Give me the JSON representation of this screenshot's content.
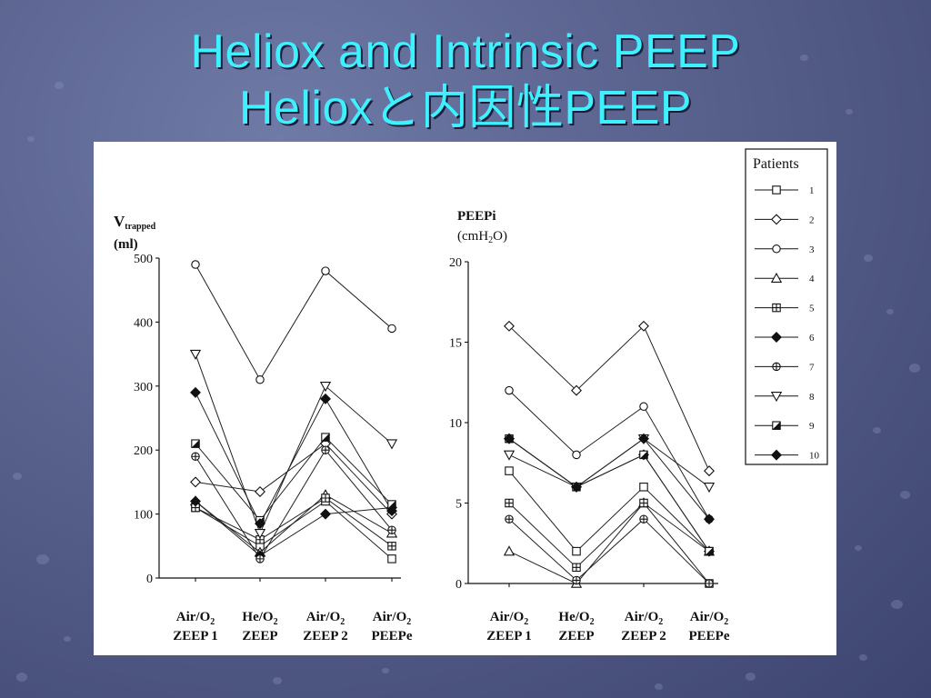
{
  "slide": {
    "title_line1": "Heliox and Intrinsic PEEP",
    "title_line2": "Helioxと内因性PEEP"
  },
  "legend": {
    "title": "Patients",
    "items": [
      "1",
      "2",
      "3",
      "4",
      "5",
      "6",
      "7",
      "8",
      "9",
      "10"
    ]
  },
  "chart_data": [
    {
      "type": "line",
      "ylabel_main": "V",
      "ylabel_sub": "trapped",
      "ylabel_unit": "(ml)",
      "ylim": [
        0,
        500
      ],
      "yticks": [
        "0",
        "100",
        "200",
        "300",
        "400",
        "500"
      ],
      "categories": [
        {
          "line1": "Air/O",
          "sub": "2",
          "line2": "ZEEP 1"
        },
        {
          "line1": "He/O",
          "sub": "2",
          "line2": "ZEEP"
        },
        {
          "line1": "Air/O",
          "sub": "2",
          "line2": "ZEEP 2"
        },
        {
          "line1": "Air/O",
          "sub": "2",
          "line2": "PEEPe"
        }
      ],
      "series": [
        {
          "name": "1",
          "marker": "square",
          "values": [
            110,
            50,
            120,
            30
          ]
        },
        {
          "name": "2",
          "marker": "diamond",
          "values": [
            150,
            135,
            210,
            100
          ]
        },
        {
          "name": "3",
          "marker": "circle",
          "values": [
            490,
            310,
            480,
            390
          ]
        },
        {
          "name": "4",
          "marker": "triangle-up",
          "values": [
            120,
            40,
            130,
            70
          ]
        },
        {
          "name": "5",
          "marker": "square-cross",
          "values": [
            110,
            60,
            125,
            50
          ]
        },
        {
          "name": "6",
          "marker": "diamond-filled",
          "values": [
            120,
            35,
            100,
            110
          ]
        },
        {
          "name": "7",
          "marker": "circle-cross",
          "values": [
            190,
            30,
            200,
            75
          ]
        },
        {
          "name": "8",
          "marker": "triangle-down",
          "values": [
            350,
            70,
            300,
            210
          ]
        },
        {
          "name": "9",
          "marker": "square-half",
          "values": [
            210,
            90,
            220,
            115
          ]
        },
        {
          "name": "10",
          "marker": "diamond-filled",
          "values": [
            290,
            85,
            280,
            105
          ]
        }
      ]
    },
    {
      "type": "line",
      "ylabel_main": "PEEPi",
      "ylabel_unit_pre": "(cmH",
      "ylabel_unit_sub": "2",
      "ylabel_unit_post": "O)",
      "ylim": [
        0,
        20
      ],
      "yticks": [
        "0",
        "5",
        "10",
        "15",
        "20"
      ],
      "categories": [
        {
          "line1": "Air/O",
          "sub": "2",
          "line2": "ZEEP 1"
        },
        {
          "line1": "He/O",
          "sub": "2",
          "line2": "ZEEP"
        },
        {
          "line1": "Air/O",
          "sub": "2",
          "line2": "ZEEP 2"
        },
        {
          "line1": "Air/O",
          "sub": "2",
          "line2": "PEEPe"
        }
      ],
      "series": [
        {
          "name": "1",
          "marker": "square",
          "values": [
            7,
            2,
            6,
            2
          ]
        },
        {
          "name": "2",
          "marker": "diamond",
          "values": [
            16,
            12,
            16,
            7
          ]
        },
        {
          "name": "3",
          "marker": "circle",
          "values": [
            12,
            8,
            11,
            4
          ]
        },
        {
          "name": "4",
          "marker": "triangle-up",
          "values": [
            2,
            0,
            5,
            2
          ]
        },
        {
          "name": "5",
          "marker": "square-cross",
          "values": [
            5,
            1,
            5,
            0
          ]
        },
        {
          "name": "6",
          "marker": "diamond-filled",
          "values": [
            9,
            6,
            8,
            2
          ]
        },
        {
          "name": "7",
          "marker": "circle-cross",
          "values": [
            4,
            0.2,
            4,
            0
          ]
        },
        {
          "name": "8",
          "marker": "triangle-down",
          "values": [
            8,
            6,
            9,
            6
          ]
        },
        {
          "name": "9",
          "marker": "square-half",
          "values": [
            9,
            6,
            8,
            2
          ]
        },
        {
          "name": "10",
          "marker": "diamond-filled",
          "values": [
            9,
            6,
            9,
            4
          ]
        }
      ]
    }
  ]
}
